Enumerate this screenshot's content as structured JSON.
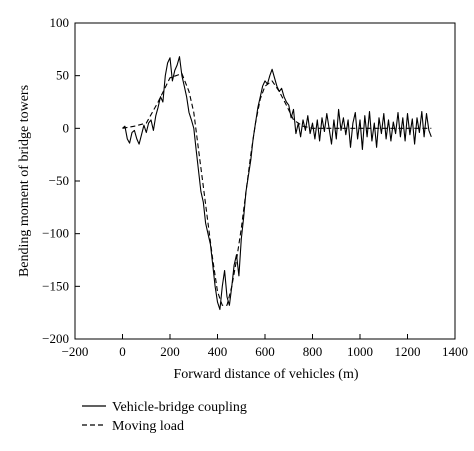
{
  "chart_data": {
    "type": "line",
    "xlabel": "Forward distance of vehicles (m)",
    "ylabel": "Bending moment of bridge towers",
    "xlim": [
      -200,
      1400
    ],
    "ylim": [
      -200,
      100
    ],
    "xticks": [
      -200,
      0,
      200,
      400,
      600,
      800,
      1000,
      1200,
      1400
    ],
    "yticks": [
      -200,
      -150,
      -100,
      -50,
      0,
      50,
      100
    ],
    "grid": false,
    "legend_position": "bottom-left, below plot",
    "series": [
      {
        "name": "Vehicle-bridge coupling",
        "style": "solid",
        "color": "#000000",
        "points": [
          [
            0,
            0
          ],
          [
            10,
            2
          ],
          [
            20,
            -10
          ],
          [
            30,
            -14
          ],
          [
            40,
            -4
          ],
          [
            50,
            -2
          ],
          [
            60,
            -10
          ],
          [
            70,
            -15
          ],
          [
            80,
            -6
          ],
          [
            90,
            3
          ],
          [
            100,
            -4
          ],
          [
            110,
            5
          ],
          [
            120,
            8
          ],
          [
            130,
            -2
          ],
          [
            140,
            12
          ],
          [
            150,
            20
          ],
          [
            160,
            30
          ],
          [
            170,
            25
          ],
          [
            180,
            50
          ],
          [
            190,
            62
          ],
          [
            200,
            67
          ],
          [
            210,
            45
          ],
          [
            220,
            55
          ],
          [
            230,
            60
          ],
          [
            240,
            68
          ],
          [
            250,
            50
          ],
          [
            260,
            40
          ],
          [
            270,
            30
          ],
          [
            280,
            15
          ],
          [
            290,
            8
          ],
          [
            300,
            0
          ],
          [
            310,
            -20
          ],
          [
            320,
            -40
          ],
          [
            330,
            -60
          ],
          [
            340,
            -70
          ],
          [
            350,
            -90
          ],
          [
            360,
            -100
          ],
          [
            370,
            -110
          ],
          [
            380,
            -130
          ],
          [
            390,
            -150
          ],
          [
            400,
            -165
          ],
          [
            410,
            -172
          ],
          [
            420,
            -150
          ],
          [
            430,
            -135
          ],
          [
            440,
            -160
          ],
          [
            450,
            -168
          ],
          [
            460,
            -150
          ],
          [
            470,
            -130
          ],
          [
            480,
            -120
          ],
          [
            490,
            -140
          ],
          [
            500,
            -105
          ],
          [
            510,
            -85
          ],
          [
            520,
            -60
          ],
          [
            530,
            -45
          ],
          [
            540,
            -30
          ],
          [
            550,
            -10
          ],
          [
            560,
            5
          ],
          [
            570,
            20
          ],
          [
            580,
            30
          ],
          [
            590,
            40
          ],
          [
            600,
            45
          ],
          [
            610,
            42
          ],
          [
            620,
            50
          ],
          [
            630,
            56
          ],
          [
            640,
            48
          ],
          [
            650,
            40
          ],
          [
            660,
            35
          ],
          [
            670,
            38
          ],
          [
            680,
            30
          ],
          [
            690,
            25
          ],
          [
            700,
            22
          ],
          [
            710,
            10
          ],
          [
            720,
            18
          ],
          [
            730,
            -5
          ],
          [
            740,
            5
          ],
          [
            750,
            -8
          ],
          [
            760,
            8
          ],
          [
            770,
            -2
          ],
          [
            780,
            12
          ],
          [
            790,
            -5
          ],
          [
            800,
            5
          ],
          [
            810,
            -10
          ],
          [
            820,
            8
          ],
          [
            830,
            -12
          ],
          [
            840,
            10
          ],
          [
            850,
            -3
          ],
          [
            860,
            14
          ],
          [
            870,
            0
          ],
          [
            880,
            -15
          ],
          [
            890,
            8
          ],
          [
            900,
            -10
          ],
          [
            910,
            18
          ],
          [
            920,
            -2
          ],
          [
            930,
            10
          ],
          [
            940,
            -6
          ],
          [
            950,
            8
          ],
          [
            960,
            -18
          ],
          [
            970,
            5
          ],
          [
            980,
            15
          ],
          [
            990,
            -10
          ],
          [
            1000,
            8
          ],
          [
            1010,
            -20
          ],
          [
            1020,
            12
          ],
          [
            1030,
            -8
          ],
          [
            1040,
            16
          ],
          [
            1050,
            -12
          ],
          [
            1060,
            5
          ],
          [
            1070,
            -18
          ],
          [
            1080,
            10
          ],
          [
            1090,
            -5
          ],
          [
            1100,
            14
          ],
          [
            1110,
            -10
          ],
          [
            1120,
            8
          ],
          [
            1130,
            -12
          ],
          [
            1140,
            6
          ],
          [
            1150,
            -5
          ],
          [
            1160,
            15
          ],
          [
            1170,
            -8
          ],
          [
            1180,
            10
          ],
          [
            1190,
            -12
          ],
          [
            1200,
            14
          ],
          [
            1210,
            -6
          ],
          [
            1220,
            9
          ],
          [
            1230,
            -15
          ],
          [
            1240,
            10
          ],
          [
            1250,
            -4
          ],
          [
            1260,
            16
          ],
          [
            1270,
            -8
          ],
          [
            1280,
            14
          ],
          [
            1290,
            -2
          ],
          [
            1300,
            -8
          ]
        ]
      },
      {
        "name": "Moving load",
        "style": "dashed",
        "color": "#000000",
        "points": [
          [
            0,
            0
          ],
          [
            50,
            2
          ],
          [
            100,
            5
          ],
          [
            150,
            25
          ],
          [
            200,
            48
          ],
          [
            250,
            52
          ],
          [
            280,
            35
          ],
          [
            300,
            15
          ],
          [
            320,
            -20
          ],
          [
            340,
            -55
          ],
          [
            360,
            -90
          ],
          [
            380,
            -125
          ],
          [
            400,
            -155
          ],
          [
            420,
            -168
          ],
          [
            440,
            -168
          ],
          [
            460,
            -150
          ],
          [
            480,
            -125
          ],
          [
            500,
            -95
          ],
          [
            520,
            -60
          ],
          [
            540,
            -25
          ],
          [
            560,
            5
          ],
          [
            580,
            28
          ],
          [
            600,
            40
          ],
          [
            630,
            45
          ],
          [
            660,
            35
          ],
          [
            690,
            22
          ],
          [
            720,
            8
          ],
          [
            760,
            2
          ],
          [
            800,
            0
          ],
          [
            900,
            0
          ],
          [
            1000,
            0
          ],
          [
            1100,
            0
          ],
          [
            1200,
            0
          ],
          [
            1300,
            0
          ]
        ]
      }
    ]
  }
}
